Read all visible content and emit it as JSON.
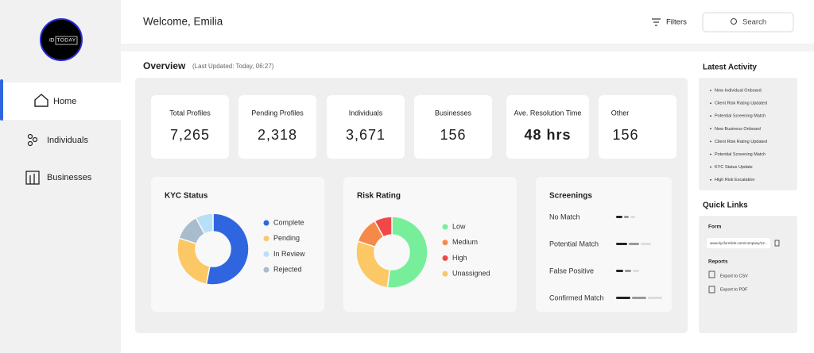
{
  "sidebar": {
    "logo_left": "ID",
    "logo_right": "TODAY",
    "nav": [
      "Home",
      "Individuals",
      "Businesses"
    ]
  },
  "header": {
    "greeting": "Welcome, Emilia",
    "filters": "Filters",
    "search": "Search"
  },
  "overview": {
    "title": "Overview",
    "updated": "(Last Updated: Today, 06:27)",
    "stats": [
      {
        "label": "Total Profiles",
        "value": "7,265"
      },
      {
        "label": "Pending Profiles",
        "value": "2,318"
      },
      {
        "label": "Individuals",
        "value": "3,671"
      },
      {
        "label": "Businesses",
        "value": "156"
      },
      {
        "label": "Ave. Resolution Time",
        "value": "48 hrs"
      },
      {
        "label": "Other",
        "value": "156"
      }
    ]
  },
  "kyc_status": {
    "type": "pie",
    "title": "KYC Status",
    "categories": [
      "Complete",
      "Pending",
      "In Review",
      "Rejected"
    ],
    "values": [
      53,
      27,
      8,
      12
    ],
    "colors": [
      "#2f66e0",
      "#fcc865",
      "#b6e0f7",
      "#a9bccd"
    ]
  },
  "risk_rating": {
    "type": "pie",
    "title": "Risk Rating",
    "categories": [
      "Low",
      "Medium",
      "High",
      "Unassigned"
    ],
    "values": [
      52,
      12,
      8,
      28
    ],
    "colors": [
      "#77ef9a",
      "#f58a48",
      "#f04848",
      "#fcc865"
    ]
  },
  "screenings": {
    "title": "Screenings",
    "items": [
      "No Match",
      "Potential Match",
      "False Positive",
      "Confirmed Match"
    ]
  },
  "latest_activity": {
    "title": "Latest Activity",
    "items": [
      "New Individual Onboard",
      "Client Risk Rating Updated",
      "Potential Screening Match",
      "New Business Onboard",
      "Client Risk Rating Updated",
      "Potential Screening Match",
      "KYC Status Update",
      "High Risk Escalation"
    ]
  },
  "quick_links": {
    "title": "Quick Links",
    "form_label": "Form",
    "url": "www.kycformlink.com/company/12...",
    "reports_label": "Reports",
    "reports": [
      "Export to CSV",
      "Export to PDF"
    ]
  }
}
